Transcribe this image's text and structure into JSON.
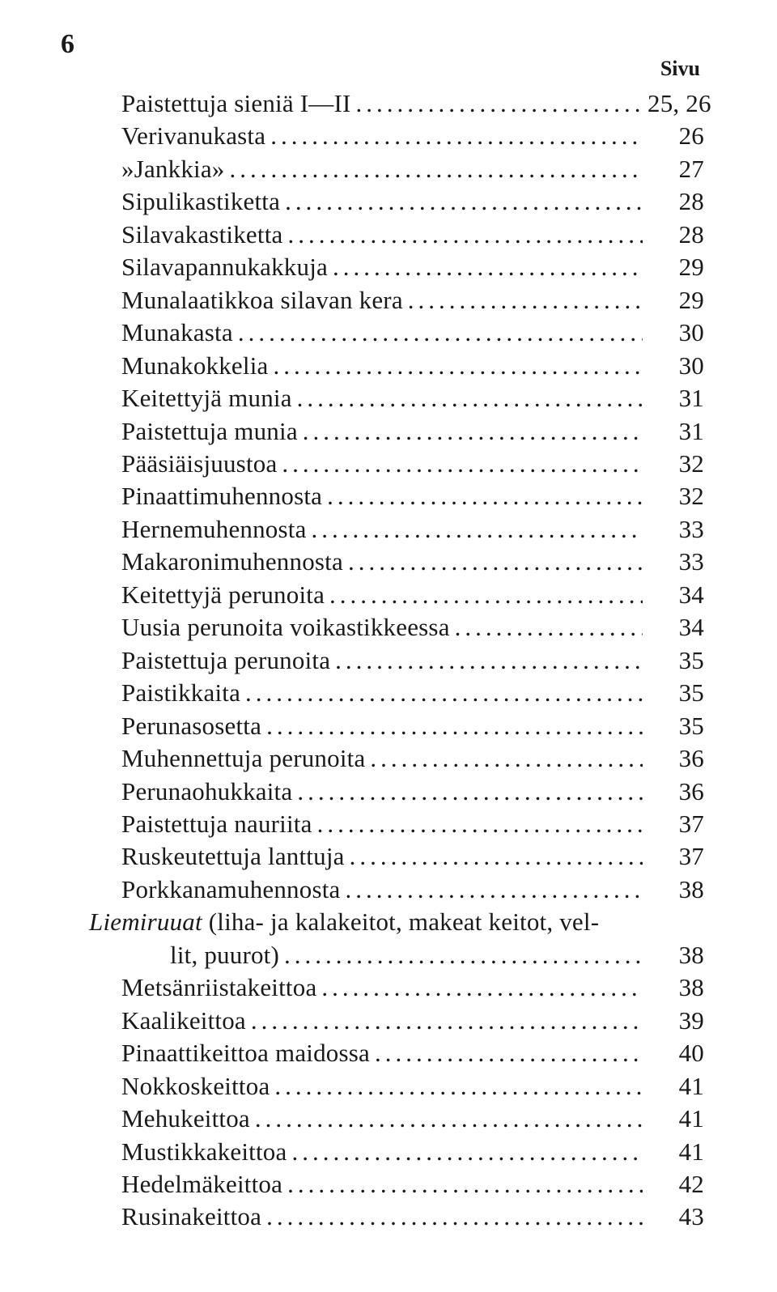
{
  "page_number": "6",
  "header_right": "Sivu",
  "style": {
    "background_color": "#ffffff",
    "text_color": "#1a1a1a",
    "font_family": "Times New Roman",
    "base_fontsize_pt": 23,
    "line_height": 1.305,
    "leader_char": "."
  },
  "entries": [
    {
      "label": "Paistettuja sieniä I—II",
      "page": "25, 26",
      "indent": 1,
      "italic": false
    },
    {
      "label": "Verivanukasta",
      "page": "26",
      "indent": 1,
      "italic": false
    },
    {
      "label": "»Jankkia»",
      "page": "27",
      "indent": 1,
      "italic": false
    },
    {
      "label": "Sipulikastiketta",
      "page": "28",
      "indent": 1,
      "italic": false
    },
    {
      "label": "Silavakastiketta",
      "page": "28",
      "indent": 1,
      "italic": false
    },
    {
      "label": "Silavapannukakkuja",
      "page": "29",
      "indent": 1,
      "italic": false
    },
    {
      "label": "Munalaatikkoa silavan kera",
      "page": "29",
      "indent": 1,
      "italic": false
    },
    {
      "label": "Munakasta",
      "page": "30",
      "indent": 1,
      "italic": false
    },
    {
      "label": "Munakokkelia",
      "page": "30",
      "indent": 1,
      "italic": false
    },
    {
      "label": "Keitettyjä munia",
      "page": "31",
      "indent": 1,
      "italic": false
    },
    {
      "label": "Paistettuja munia",
      "page": "31",
      "indent": 1,
      "italic": false
    },
    {
      "label": "Pääsiäisjuustoa",
      "page": "32",
      "indent": 1,
      "italic": false
    },
    {
      "label": "Pinaattimuhennosta",
      "page": "32",
      "indent": 1,
      "italic": false
    },
    {
      "label": "Hernemuhennosta",
      "page": "33",
      "indent": 1,
      "italic": false
    },
    {
      "label": "Makaronimuhennosta",
      "page": "33",
      "indent": 1,
      "italic": false
    },
    {
      "label": "Keitettyjä perunoita",
      "page": "34",
      "indent": 1,
      "italic": false
    },
    {
      "label": "Uusia perunoita voikastikkeessa",
      "page": "34",
      "indent": 1,
      "italic": false
    },
    {
      "label": "Paistettuja perunoita",
      "page": "35",
      "indent": 1,
      "italic": false
    },
    {
      "label": "Paistikkaita",
      "page": "35",
      "indent": 1,
      "italic": false
    },
    {
      "label": "Perunasosetta",
      "page": "35",
      "indent": 1,
      "italic": false
    },
    {
      "label": "Muhennettuja perunoita",
      "page": "36",
      "indent": 1,
      "italic": false
    },
    {
      "label": "Perunaohukkaita",
      "page": "36",
      "indent": 1,
      "italic": false
    },
    {
      "label": "Paistettuja nauriita",
      "page": "37",
      "indent": 1,
      "italic": false
    },
    {
      "label": "Ruskeutettuja lanttuja",
      "page": "37",
      "indent": 1,
      "italic": false
    },
    {
      "label": "Porkkanamuhennosta",
      "page": "38",
      "indent": 1,
      "italic": false
    },
    {
      "label_line1": "Liemiruuat (liha- ja kalakeitot, makeat keitot, vel-",
      "label_line2": "lit, puurot)",
      "page": "38",
      "indent": 0,
      "italic_word": "Liemiruuat",
      "is_section": true
    },
    {
      "label": "Metsänriistakeittoa",
      "page": "38",
      "indent": 1,
      "italic": false
    },
    {
      "label": "Kaalikeittoa",
      "page": "39",
      "indent": 1,
      "italic": false
    },
    {
      "label": "Pinaattikeittoa maidossa",
      "page": "40",
      "indent": 1,
      "italic": false
    },
    {
      "label": "Nokkoskeittoa",
      "page": "41",
      "indent": 1,
      "italic": false
    },
    {
      "label": "Mehukeittoa",
      "page": "41",
      "indent": 1,
      "italic": false
    },
    {
      "label": "Mustikkakeittoa",
      "page": "41",
      "indent": 1,
      "italic": false
    },
    {
      "label": "Hedelmäkeittoa",
      "page": "42",
      "indent": 1,
      "italic": false
    },
    {
      "label": "Rusinakeittoa",
      "page": "43",
      "indent": 1,
      "italic": false
    }
  ]
}
